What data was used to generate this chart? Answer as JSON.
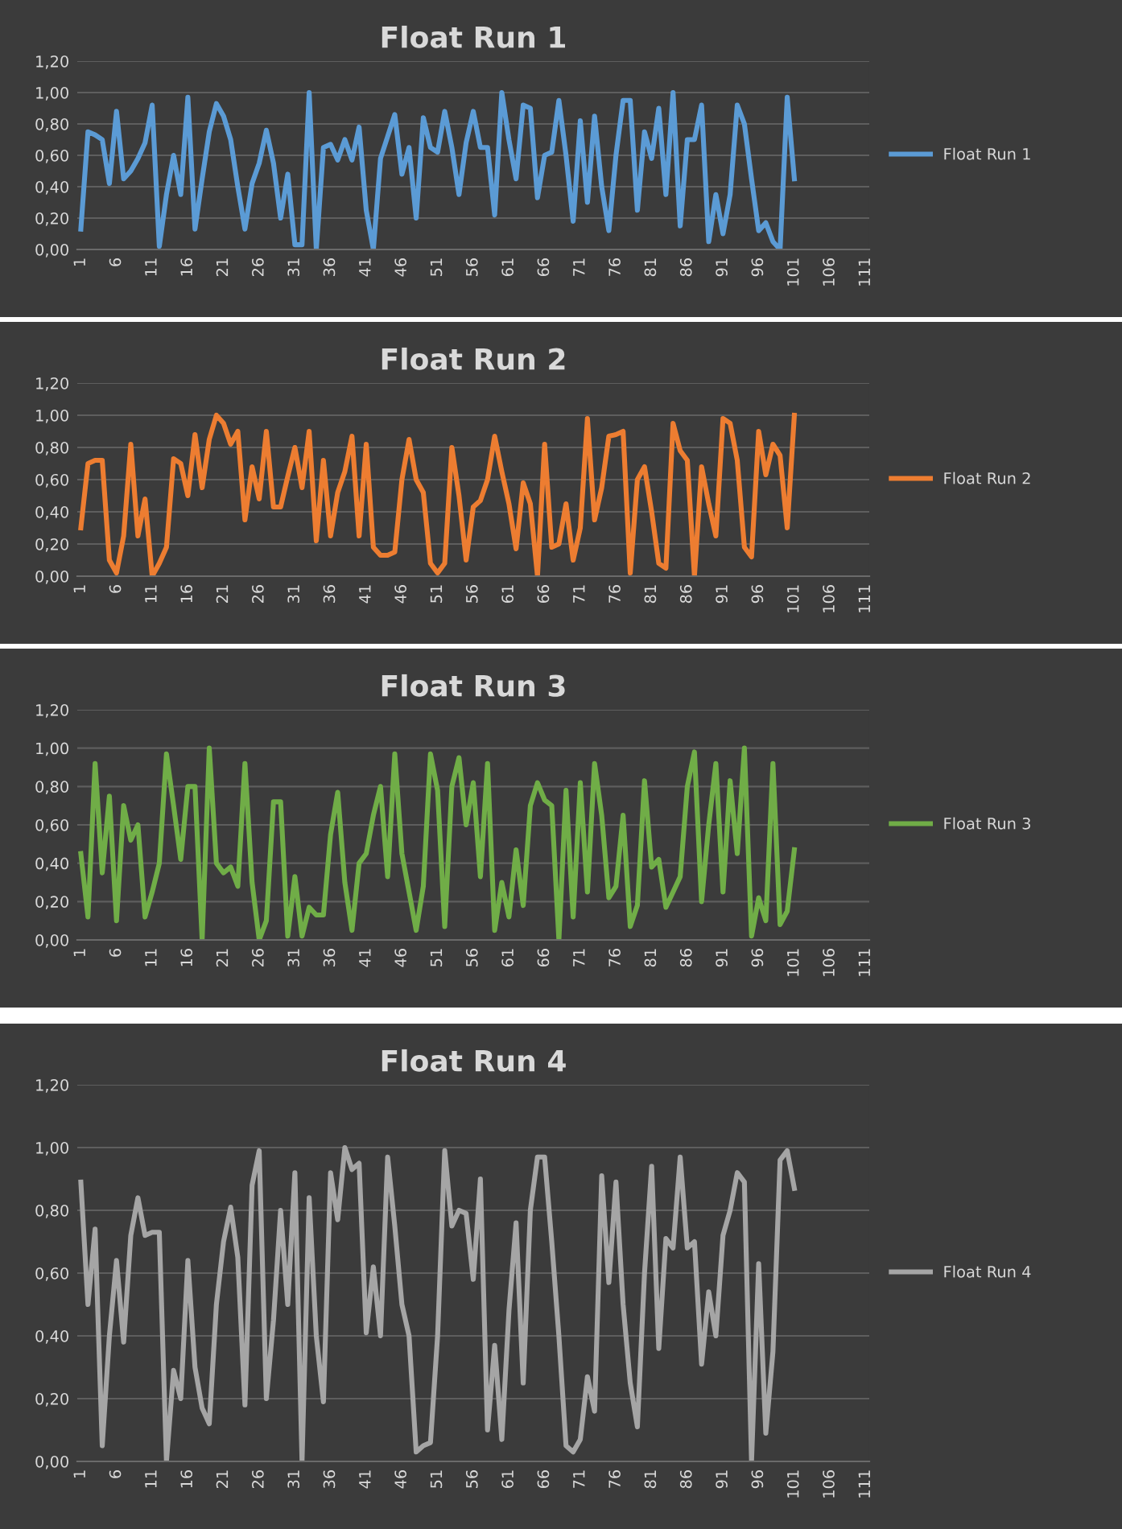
{
  "chart_data": [
    {
      "type": "line",
      "title": "Float Run 1",
      "categories": [
        "1",
        null,
        null,
        null,
        null,
        "6",
        null,
        null,
        null,
        null,
        "11",
        null,
        null,
        null,
        null,
        "16",
        null,
        null,
        null,
        null,
        "21",
        null,
        null,
        null,
        null,
        "26",
        null,
        null,
        null,
        null,
        "31",
        null,
        null,
        null,
        null,
        "36",
        null,
        null,
        null,
        null,
        "41",
        null,
        null,
        null,
        null,
        "46",
        null,
        null,
        null,
        null,
        "51",
        null,
        null,
        null,
        null,
        "56",
        null,
        null,
        null,
        null,
        "61",
        null,
        null,
        null,
        null,
        "66",
        null,
        null,
        null,
        null,
        "71",
        null,
        null,
        null,
        null,
        "76",
        null,
        null,
        null,
        null,
        "81",
        null,
        null,
        null,
        null,
        "86",
        null,
        null,
        null,
        null,
        "91",
        null,
        null,
        null,
        null,
        "96",
        null,
        null,
        null,
        null,
        "101",
        null,
        null,
        null,
        null,
        "106",
        null,
        null,
        null,
        null,
        "111"
      ],
      "series": [
        {
          "name": "Float Run 1",
          "color": "#5b9bd5",
          "values": [
            0.13,
            0.75,
            0.73,
            0.7,
            0.42,
            0.88,
            0.45,
            0.5,
            0.58,
            0.68,
            0.92,
            0.02,
            0.35,
            0.6,
            0.35,
            0.97,
            0.13,
            0.45,
            0.75,
            0.93,
            0.85,
            0.7,
            0.4,
            0.13,
            0.42,
            0.55,
            0.76,
            0.55,
            0.2,
            0.48,
            0.03,
            0.03,
            1.0,
            0.0,
            0.65,
            0.67,
            0.57,
            0.7,
            0.57,
            0.78,
            0.25,
            0.0,
            0.58,
            0.72,
            0.86,
            0.48,
            0.65,
            0.2,
            0.84,
            0.65,
            0.62,
            0.88,
            0.65,
            0.35,
            0.68,
            0.88,
            0.65,
            0.65,
            0.22,
            1.0,
            0.7,
            0.45,
            0.92,
            0.9,
            0.33,
            0.6,
            0.62,
            0.95,
            0.6,
            0.18,
            0.82,
            0.3,
            0.85,
            0.4,
            0.12,
            0.6,
            0.95,
            0.95,
            0.25,
            0.75,
            0.58,
            0.9,
            0.35,
            1.0,
            0.15,
            0.7,
            0.7,
            0.92,
            0.05,
            0.35,
            0.1,
            0.35,
            0.92,
            0.8,
            0.45,
            0.12,
            0.17,
            0.05,
            0.0,
            0.97,
            0.45,
            null,
            null,
            null,
            null,
            null,
            null,
            null,
            null,
            null,
            null
          ]
        }
      ],
      "ylim": [
        0,
        1.2
      ],
      "yticks": [
        {
          "value": 0,
          "label": "0,00"
        },
        {
          "value": 0.2,
          "label": "0,20"
        },
        {
          "value": 0.4,
          "label": "0,40"
        },
        {
          "value": 0.6,
          "label": "0,60"
        },
        {
          "value": 0.8,
          "label": "0,80"
        },
        {
          "value": 1.0,
          "label": "1,00"
        },
        {
          "value": 1.2,
          "label": "1,20"
        }
      ],
      "grid": "y",
      "legend": "right",
      "marker": "none",
      "line_style": "solid"
    },
    {
      "type": "line",
      "title": "Float Run 2",
      "categories": [
        "1",
        null,
        null,
        null,
        null,
        "6",
        null,
        null,
        null,
        null,
        "11",
        null,
        null,
        null,
        null,
        "16",
        null,
        null,
        null,
        null,
        "21",
        null,
        null,
        null,
        null,
        "26",
        null,
        null,
        null,
        null,
        "31",
        null,
        null,
        null,
        null,
        "36",
        null,
        null,
        null,
        null,
        "41",
        null,
        null,
        null,
        null,
        "46",
        null,
        null,
        null,
        null,
        "51",
        null,
        null,
        null,
        null,
        "56",
        null,
        null,
        null,
        null,
        "61",
        null,
        null,
        null,
        null,
        "66",
        null,
        null,
        null,
        null,
        "71",
        null,
        null,
        null,
        null,
        "76",
        null,
        null,
        null,
        null,
        "81",
        null,
        null,
        null,
        null,
        "86",
        null,
        null,
        null,
        null,
        "91",
        null,
        null,
        null,
        null,
        "96",
        null,
        null,
        null,
        null,
        "101",
        null,
        null,
        null,
        null,
        "106",
        null,
        null,
        null,
        null,
        "111"
      ],
      "series": [
        {
          "name": "Float Run 2",
          "color": "#ed7d31",
          "values": [
            0.3,
            0.7,
            0.72,
            0.72,
            0.1,
            0.02,
            0.25,
            0.82,
            0.25,
            0.48,
            0.0,
            0.08,
            0.18,
            0.73,
            0.7,
            0.5,
            0.88,
            0.55,
            0.85,
            1.0,
            0.95,
            0.82,
            0.9,
            0.35,
            0.68,
            0.48,
            0.9,
            0.43,
            0.43,
            0.62,
            0.8,
            0.55,
            0.9,
            0.22,
            0.72,
            0.25,
            0.52,
            0.65,
            0.87,
            0.25,
            0.82,
            0.18,
            0.13,
            0.13,
            0.15,
            0.6,
            0.85,
            0.6,
            0.52,
            0.08,
            0.02,
            0.08,
            0.8,
            0.5,
            0.1,
            0.43,
            0.47,
            0.6,
            0.87,
            0.65,
            0.45,
            0.17,
            0.58,
            0.45,
            0.0,
            0.82,
            0.18,
            0.2,
            0.45,
            0.1,
            0.3,
            0.98,
            0.35,
            0.55,
            0.87,
            0.88,
            0.9,
            0.02,
            0.6,
            0.68,
            0.4,
            0.08,
            0.05,
            0.95,
            0.78,
            0.72,
            0.0,
            0.68,
            0.45,
            0.25,
            0.98,
            0.95,
            0.72,
            0.18,
            0.12,
            0.9,
            0.63,
            0.82,
            0.75,
            0.3,
            1.0,
            null,
            null,
            null,
            null,
            null,
            null,
            null,
            null,
            null,
            null
          ]
        }
      ],
      "ylim": [
        0,
        1.2
      ],
      "yticks": [
        {
          "value": 0,
          "label": "0,00"
        },
        {
          "value": 0.2,
          "label": "0,20"
        },
        {
          "value": 0.4,
          "label": "0,40"
        },
        {
          "value": 0.6,
          "label": "0,60"
        },
        {
          "value": 0.8,
          "label": "0,80"
        },
        {
          "value": 1.0,
          "label": "1,00"
        },
        {
          "value": 1.2,
          "label": "1,20"
        }
      ],
      "grid": "y",
      "legend": "right",
      "marker": "none",
      "line_style": "solid"
    },
    {
      "type": "line",
      "title": "Float Run 3",
      "categories": [
        "1",
        null,
        null,
        null,
        null,
        "6",
        null,
        null,
        null,
        null,
        "11",
        null,
        null,
        null,
        null,
        "16",
        null,
        null,
        null,
        null,
        "21",
        null,
        null,
        null,
        null,
        "26",
        null,
        null,
        null,
        null,
        "31",
        null,
        null,
        null,
        null,
        "36",
        null,
        null,
        null,
        null,
        "41",
        null,
        null,
        null,
        null,
        "46",
        null,
        null,
        null,
        null,
        "51",
        null,
        null,
        null,
        null,
        "56",
        null,
        null,
        null,
        null,
        "61",
        null,
        null,
        null,
        null,
        "66",
        null,
        null,
        null,
        null,
        "71",
        null,
        null,
        null,
        null,
        "76",
        null,
        null,
        null,
        null,
        "81",
        null,
        null,
        null,
        null,
        "86",
        null,
        null,
        null,
        null,
        "91",
        null,
        null,
        null,
        null,
        "96",
        null,
        null,
        null,
        null,
        "101",
        null,
        null,
        null,
        null,
        "106",
        null,
        null,
        null,
        null,
        "111"
      ],
      "series": [
        {
          "name": "Float Run 3",
          "color": "#70ad47",
          "values": [
            0.45,
            0.12,
            0.92,
            0.35,
            0.75,
            0.1,
            0.7,
            0.52,
            0.6,
            0.12,
            0.25,
            0.4,
            0.97,
            0.7,
            0.42,
            0.8,
            0.8,
            0.0,
            1.0,
            0.4,
            0.35,
            0.38,
            0.28,
            0.92,
            0.3,
            0.0,
            0.1,
            0.72,
            0.72,
            0.02,
            0.33,
            0.02,
            0.17,
            0.13,
            0.13,
            0.55,
            0.77,
            0.3,
            0.05,
            0.4,
            0.45,
            0.65,
            0.8,
            0.33,
            0.97,
            0.45,
            0.25,
            0.05,
            0.28,
            0.97,
            0.78,
            0.07,
            0.8,
            0.95,
            0.6,
            0.82,
            0.33,
            0.92,
            0.05,
            0.3,
            0.12,
            0.47,
            0.18,
            0.7,
            0.82,
            0.73,
            0.7,
            0.0,
            0.78,
            0.12,
            0.82,
            0.25,
            0.92,
            0.65,
            0.22,
            0.28,
            0.65,
            0.07,
            0.18,
            0.83,
            0.38,
            0.42,
            0.17,
            0.25,
            0.33,
            0.8,
            0.98,
            0.2,
            0.6,
            0.92,
            0.25,
            0.83,
            0.45,
            1.0,
            0.02,
            0.22,
            0.1,
            0.92,
            0.08,
            0.15,
            0.47,
            null,
            null,
            null,
            null,
            null,
            null,
            null,
            null,
            null,
            null
          ]
        }
      ],
      "ylim": [
        0,
        1.2
      ],
      "yticks": [
        {
          "value": 0,
          "label": "0,00"
        },
        {
          "value": 0.2,
          "label": "0,20"
        },
        {
          "value": 0.4,
          "label": "0,40"
        },
        {
          "value": 0.6,
          "label": "0,60"
        },
        {
          "value": 0.8,
          "label": "0,80"
        },
        {
          "value": 1.0,
          "label": "1,00"
        },
        {
          "value": 1.2,
          "label": "1,20"
        }
      ],
      "grid": "y",
      "legend": "right",
      "marker": "none",
      "line_style": "solid"
    },
    {
      "type": "line",
      "title": "Float Run 4",
      "categories": [
        "1",
        null,
        null,
        null,
        null,
        "6",
        null,
        null,
        null,
        null,
        "11",
        null,
        null,
        null,
        null,
        "16",
        null,
        null,
        null,
        null,
        "21",
        null,
        null,
        null,
        null,
        "26",
        null,
        null,
        null,
        null,
        "31",
        null,
        null,
        null,
        null,
        "36",
        null,
        null,
        null,
        null,
        "41",
        null,
        null,
        null,
        null,
        "46",
        null,
        null,
        null,
        null,
        "51",
        null,
        null,
        null,
        null,
        "56",
        null,
        null,
        null,
        null,
        "61",
        null,
        null,
        null,
        null,
        "66",
        null,
        null,
        null,
        null,
        "71",
        null,
        null,
        null,
        null,
        "76",
        null,
        null,
        null,
        null,
        "81",
        null,
        null,
        null,
        null,
        "86",
        null,
        null,
        null,
        null,
        "91",
        null,
        null,
        null,
        null,
        "96",
        null,
        null,
        null,
        null,
        "101",
        null,
        null,
        null,
        null,
        "106",
        null,
        null,
        null,
        null,
        "111"
      ],
      "series": [
        {
          "name": "Float Run 4",
          "color": "#a5a5a5",
          "values": [
            0.89,
            0.5,
            0.74,
            0.05,
            0.4,
            0.64,
            0.38,
            0.72,
            0.84,
            0.72,
            0.73,
            0.73,
            0.0,
            0.29,
            0.2,
            0.64,
            0.3,
            0.17,
            0.12,
            0.5,
            0.7,
            0.81,
            0.65,
            0.18,
            0.88,
            0.99,
            0.2,
            0.45,
            0.8,
            0.5,
            0.92,
            0.0,
            0.84,
            0.4,
            0.19,
            0.92,
            0.77,
            1.0,
            0.93,
            0.95,
            0.41,
            0.62,
            0.4,
            0.97,
            0.75,
            0.5,
            0.4,
            0.03,
            0.05,
            0.06,
            0.4,
            0.99,
            0.75,
            0.8,
            0.79,
            0.58,
            0.9,
            0.1,
            0.37,
            0.07,
            0.48,
            0.76,
            0.25,
            0.8,
            0.97,
            0.97,
            0.7,
            0.4,
            0.05,
            0.03,
            0.07,
            0.27,
            0.16,
            0.91,
            0.57,
            0.89,
            0.5,
            0.25,
            0.11,
            0.6,
            0.94,
            0.36,
            0.71,
            0.68,
            0.97,
            0.68,
            0.7,
            0.31,
            0.54,
            0.4,
            0.72,
            0.8,
            0.92,
            0.89,
            0.0,
            0.63,
            0.09,
            0.35,
            0.96,
            0.99,
            0.87,
            null,
            null,
            null,
            null,
            null,
            null,
            null,
            null,
            null,
            null
          ]
        }
      ],
      "ylim": [
        0,
        1.2
      ],
      "yticks": [
        {
          "value": 0,
          "label": "0,00"
        },
        {
          "value": 0.2,
          "label": "0,20"
        },
        {
          "value": 0.4,
          "label": "0,40"
        },
        {
          "value": 0.6,
          "label": "0,60"
        },
        {
          "value": 0.8,
          "label": "0,80"
        },
        {
          "value": 1.0,
          "label": "1,00"
        },
        {
          "value": 1.2,
          "label": "1,20"
        }
      ],
      "grid": "y",
      "legend": "right",
      "marker": "none",
      "line_style": "solid"
    }
  ]
}
